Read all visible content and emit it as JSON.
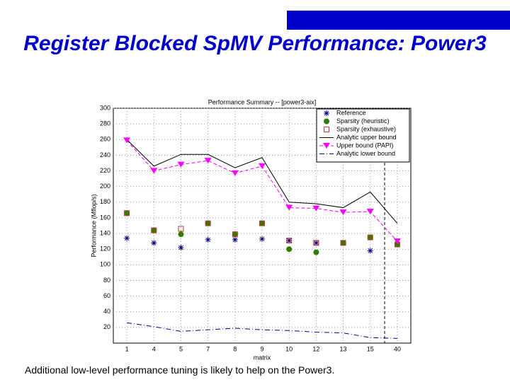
{
  "slide": {
    "title": "Register Blocked SpMV Performance: Power3",
    "footer": "Additional low-level performance tuning is likely to help on the Power3."
  },
  "chart_data": {
    "type": "line",
    "title": "Performance Summary -- [power3-aix]",
    "x_label": "matrix",
    "y_label": "Performance (Mflop/s)",
    "categories": [
      "1",
      "4",
      "5",
      "7",
      "8",
      "9",
      "10",
      "12",
      "13",
      "15",
      "40"
    ],
    "ylim": [
      0,
      300
    ],
    "yticks": [
      20,
      40,
      60,
      80,
      100,
      120,
      140,
      160,
      180,
      200,
      220,
      240,
      260,
      280,
      300
    ],
    "legend": "top-right",
    "series": [
      {
        "name": "Reference",
        "color": "#000080",
        "marker": "star",
        "line": "none",
        "values": [
          134,
          128,
          122,
          132,
          132,
          133,
          131,
          128,
          128,
          118,
          null
        ]
      },
      {
        "name": "Sparsity (heuristic)",
        "color": "#2e7d00",
        "marker": "circle",
        "line": "none",
        "values": [
          166,
          144,
          139,
          153,
          139,
          153,
          120,
          116,
          128,
          135,
          126
        ]
      },
      {
        "name": "Sparsity (exhaustive)",
        "color": "#cc3333",
        "marker": "square",
        "line": "none",
        "values": [
          166,
          144,
          146,
          153,
          139,
          153,
          131,
          128,
          128,
          135,
          126
        ]
      },
      {
        "name": "Analytic upper bound",
        "color": "#000000",
        "marker": "none",
        "line": "solid",
        "values": [
          260,
          226,
          241,
          241,
          224,
          237,
          180,
          178,
          173,
          193,
          153
        ]
      },
      {
        "name": "Upper bound (PAPI)",
        "color": "#ff00ff",
        "marker": "triangle",
        "line": "dashed",
        "values": [
          259,
          220,
          228,
          233,
          217,
          226,
          173,
          172,
          167,
          168,
          130
        ]
      },
      {
        "name": "Analytic lower bound",
        "color": "#000080",
        "marker": "none",
        "line": "dashdot",
        "values": [
          26,
          21,
          15,
          17,
          19,
          17,
          16,
          14,
          13,
          7,
          6
        ]
      }
    ]
  }
}
